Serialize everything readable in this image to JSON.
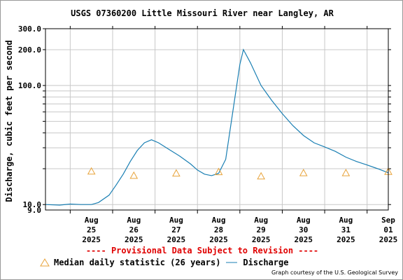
{
  "chart_data": {
    "type": "line",
    "title": "USGS 07360200 Little Missouri River near Langley, AR",
    "ylabel": "Discharge, cubic feet per second",
    "yscale": "log",
    "ylim": [
      9.0,
      300.0
    ],
    "ytick_labels": [
      "9.0",
      "10.0",
      "100.0",
      "200.0",
      "300.0"
    ],
    "xlim": [
      "2025-08-24 10:00",
      "2025-09-01 12:00"
    ],
    "x_ticks": [
      {
        "line1": "Aug",
        "line2": "25",
        "line3": "2025"
      },
      {
        "line1": "Aug",
        "line2": "26",
        "line3": "2025"
      },
      {
        "line1": "Aug",
        "line2": "27",
        "line3": "2025"
      },
      {
        "line1": "Aug",
        "line2": "28",
        "line3": "2025"
      },
      {
        "line1": "Aug",
        "line2": "29",
        "line3": "2025"
      },
      {
        "line1": "Aug",
        "line2": "30",
        "line3": "2025"
      },
      {
        "line1": "Aug",
        "line2": "31",
        "line3": "2025"
      },
      {
        "line1": "Sep",
        "line2": "01",
        "line3": "2025"
      }
    ],
    "grid": true,
    "colors": {
      "discharge": "#1a7fb3",
      "median": "#e8a33a",
      "provisional": "#e00000"
    },
    "series": [
      {
        "name": "Discharge",
        "points": [
          [
            "2025-08-24 10:00",
            10.0
          ],
          [
            "2025-08-24 18:00",
            9.9
          ],
          [
            "2025-08-25 00:00",
            10.1
          ],
          [
            "2025-08-25 06:00",
            10.0
          ],
          [
            "2025-08-25 12:00",
            10.0
          ],
          [
            "2025-08-25 16:00",
            10.4
          ],
          [
            "2025-08-25 22:00",
            12.0
          ],
          [
            "2025-08-26 02:00",
            14.6
          ],
          [
            "2025-08-26 06:00",
            18.0
          ],
          [
            "2025-08-26 10:00",
            23.0
          ],
          [
            "2025-08-26 14:00",
            28.5
          ],
          [
            "2025-08-26 18:00",
            33.0
          ],
          [
            "2025-08-26 22:00",
            35.0
          ],
          [
            "2025-08-27 02:00",
            33.0
          ],
          [
            "2025-08-27 08:00",
            29.0
          ],
          [
            "2025-08-27 14:00",
            25.5
          ],
          [
            "2025-08-27 20:00",
            22.0
          ],
          [
            "2025-08-28 00:00",
            19.5
          ],
          [
            "2025-08-28 04:00",
            18.0
          ],
          [
            "2025-08-28 08:00",
            17.5
          ],
          [
            "2025-08-28 12:00",
            18.3
          ],
          [
            "2025-08-28 16:00",
            24.0
          ],
          [
            "2025-08-28 20:00",
            60.0
          ],
          [
            "2025-08-29 00:00",
            150.0
          ],
          [
            "2025-08-29 02:00",
            200.0
          ],
          [
            "2025-08-29 06:00",
            155.0
          ],
          [
            "2025-08-29 12:00",
            100.0
          ],
          [
            "2025-08-29 18:00",
            75.0
          ],
          [
            "2025-08-30 00:00",
            58.0
          ],
          [
            "2025-08-30 06:00",
            46.0
          ],
          [
            "2025-08-30 12:00",
            38.0
          ],
          [
            "2025-08-30 18:00",
            33.0
          ],
          [
            "2025-08-31 00:00",
            30.5
          ],
          [
            "2025-08-31 06:00",
            28.0
          ],
          [
            "2025-08-31 12:00",
            25.0
          ],
          [
            "2025-08-31 18:00",
            23.0
          ],
          [
            "2025-09-01 00:00",
            21.5
          ],
          [
            "2025-09-01 06:00",
            20.0
          ],
          [
            "2025-09-01 12:00",
            18.5
          ]
        ]
      },
      {
        "name": "Median daily statistic (26 years)",
        "points": [
          [
            "2025-08-25 12:00",
            19.0
          ],
          [
            "2025-08-26 12:00",
            17.5
          ],
          [
            "2025-08-27 12:00",
            18.3
          ],
          [
            "2025-08-28 12:00",
            18.8
          ],
          [
            "2025-08-29 12:00",
            17.3
          ],
          [
            "2025-08-30 12:00",
            18.4
          ],
          [
            "2025-08-31 12:00",
            18.4
          ],
          [
            "2025-09-01 12:00",
            18.9
          ]
        ]
      }
    ],
    "provisional_note": "---- Provisional Data Subject to Revision ----",
    "legend": {
      "median_label": "Median daily statistic (26 years)",
      "discharge_label": "Discharge"
    },
    "credit": "Graph courtesy of the U.S. Geological Survey"
  }
}
